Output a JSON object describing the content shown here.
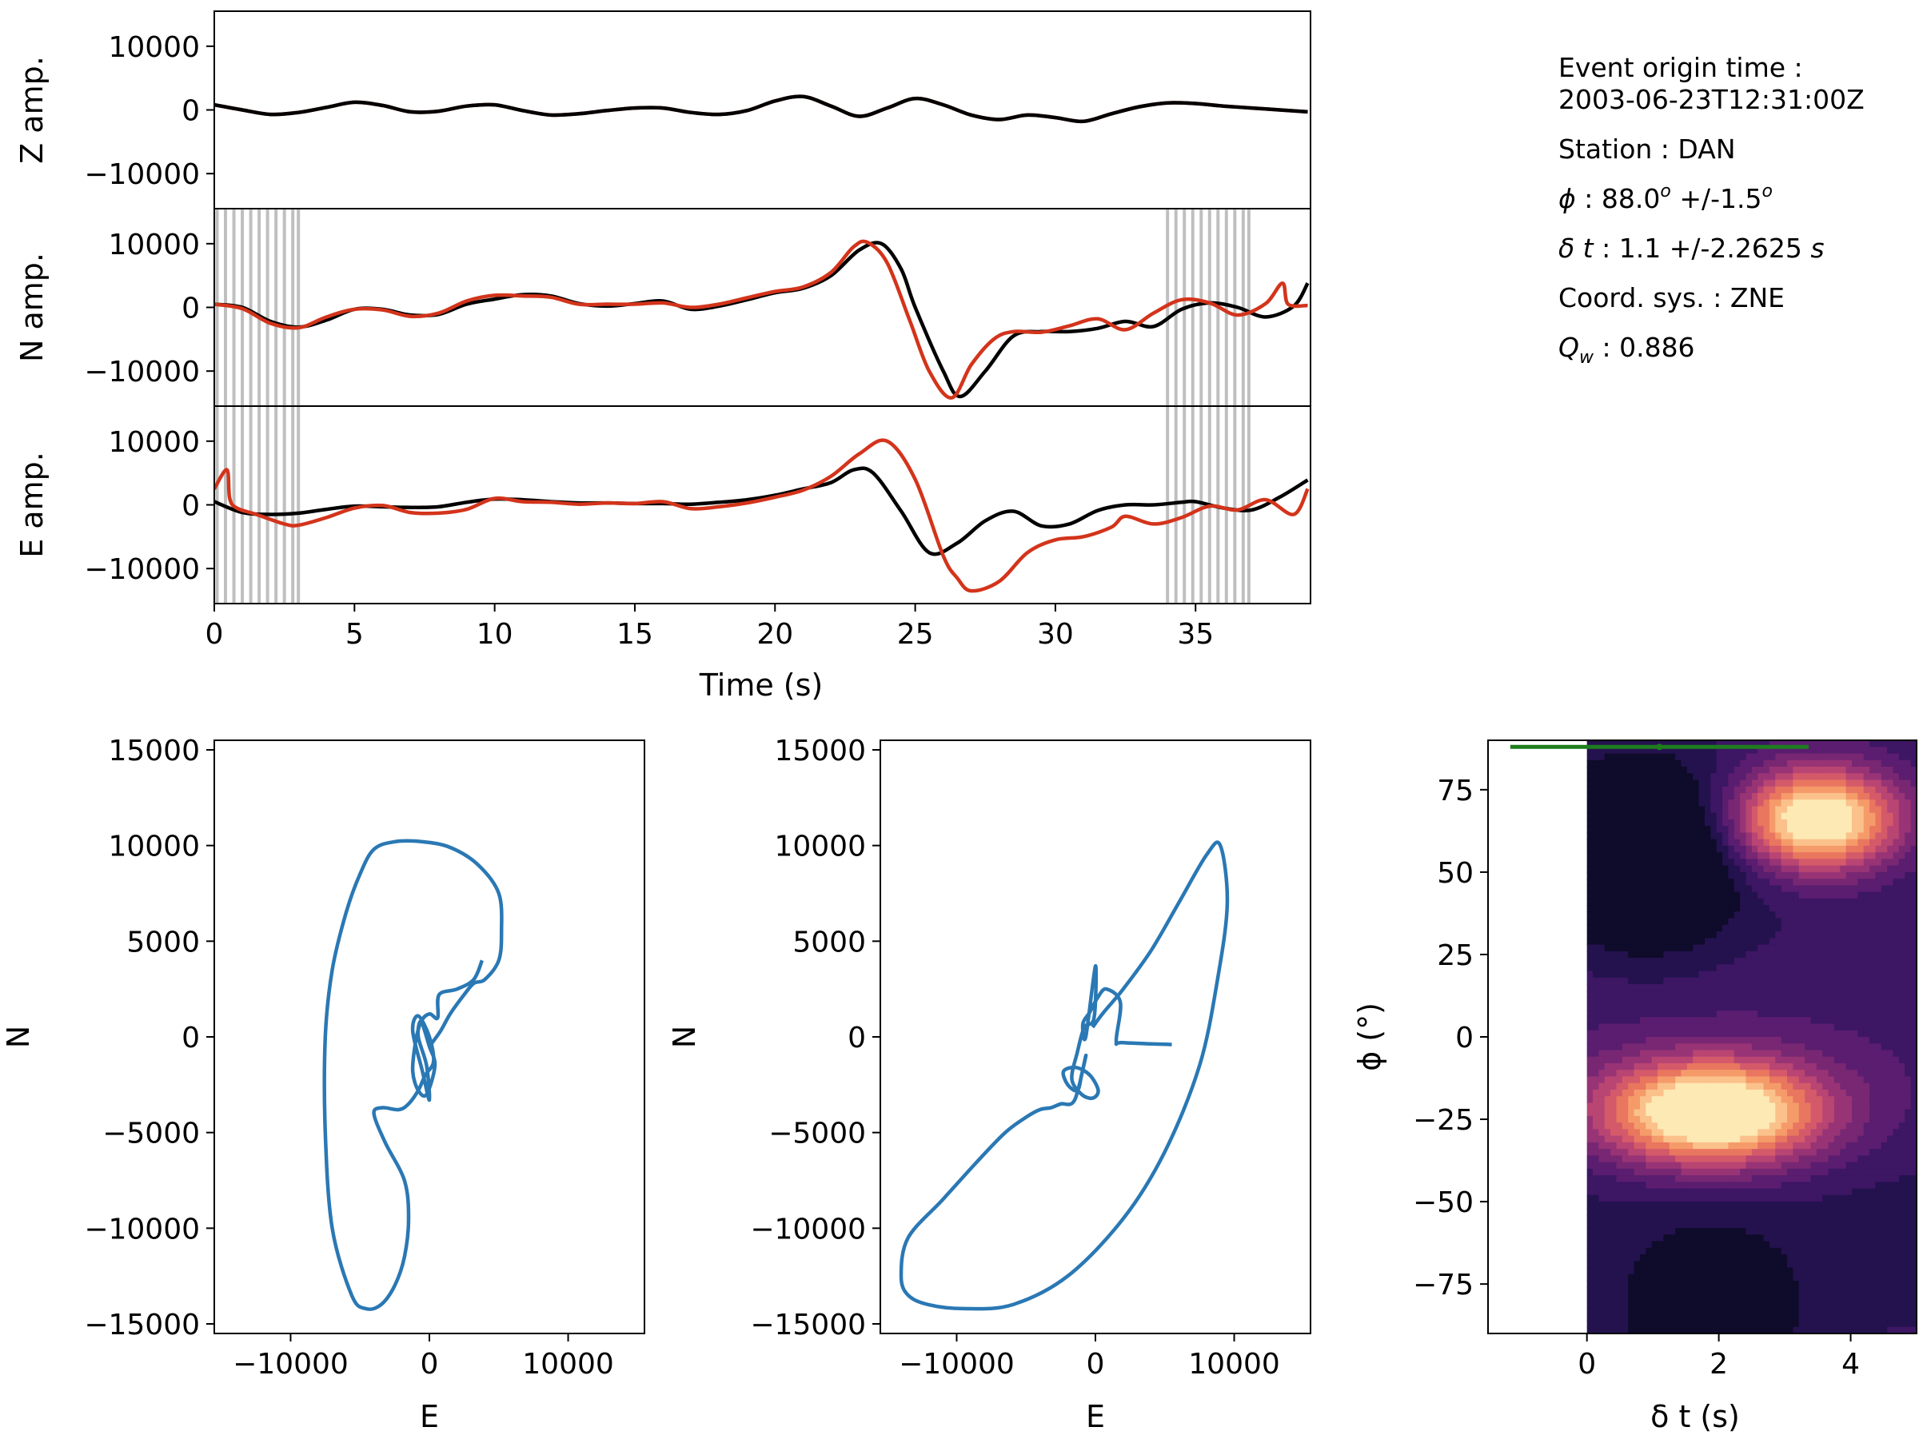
{
  "info": {
    "origin_label": "Event origin time :",
    "origin_value": "2003-06-23T12:31:00Z",
    "station": "Station : DAN",
    "phi_sym": "ϕ",
    "phi_text": " : 88.0",
    "phi_sup": "o",
    "phi_err": " +/-1.5",
    "phi_err_sup": "o",
    "dt_sym": "δ t",
    "dt_text": " : 1.1 +/-2.2625 ",
    "dt_unit": "s",
    "coord": "Coord. sys. : ZNE",
    "qw_sym": "Q",
    "qw_sub": "w",
    "qw_text": " : 0.886"
  },
  "colors": {
    "observed": "#000000",
    "corrected": "#d3341b",
    "particle": "#2a78b4",
    "window": "#bfbfbf",
    "best_fit": "#1e7d1e"
  },
  "chart_data": [
    {
      "type": "line",
      "title": "",
      "xlabel": "",
      "ylabel": "Z amp.",
      "xlim": [
        0,
        39.1
      ],
      "ylim": [
        -15500,
        15500
      ],
      "yticks": [
        10000,
        0,
        -10000
      ],
      "ytick_labels": [
        "10000",
        "0",
        "−10000"
      ],
      "series": [
        {
          "color": "#d3341b",
          "x": [
            0,
            1,
            2,
            3,
            4,
            5,
            6,
            7,
            8,
            9,
            10,
            11,
            12,
            13,
            14,
            15,
            16,
            17,
            18,
            19,
            20,
            21,
            22,
            23,
            24,
            25,
            26,
            27,
            28,
            29,
            30,
            31,
            32,
            33,
            34,
            35,
            36,
            37,
            38,
            39
          ],
          "y": [
            800,
            0,
            -700,
            -400,
            400,
            1200,
            700,
            -300,
            -200,
            600,
            800,
            -100,
            -800,
            -600,
            -100,
            300,
            300,
            -400,
            -700,
            -100,
            1400,
            2100,
            600,
            -1000,
            300,
            1800,
            800,
            -800,
            -1500,
            -800,
            -1200,
            -1800,
            -600,
            500,
            1100,
            1000,
            600,
            300,
            0,
            -300
          ]
        },
        {
          "color": "#000000",
          "x": [
            0,
            1,
            2,
            3,
            4,
            5,
            6,
            7,
            8,
            9,
            10,
            11,
            12,
            13,
            14,
            15,
            16,
            17,
            18,
            19,
            20,
            21,
            22,
            23,
            24,
            25,
            26,
            27,
            28,
            29,
            30,
            31,
            32,
            33,
            34,
            35,
            36,
            37,
            38,
            39
          ],
          "y": [
            800,
            0,
            -700,
            -400,
            400,
            1200,
            700,
            -300,
            -200,
            600,
            800,
            -100,
            -800,
            -600,
            -100,
            300,
            300,
            -400,
            -700,
            -100,
            1400,
            2100,
            600,
            -1000,
            300,
            1800,
            800,
            -800,
            -1500,
            -800,
            -1200,
            -1800,
            -600,
            500,
            1100,
            1000,
            600,
            300,
            0,
            -300
          ]
        }
      ]
    },
    {
      "type": "line",
      "title": "",
      "xlabel": "",
      "ylabel": "N amp.",
      "xlim": [
        0,
        39.1
      ],
      "ylim": [
        -15500,
        15500
      ],
      "yticks": [
        10000,
        0,
        -10000
      ],
      "ytick_labels": [
        "10000",
        "0",
        "−10000"
      ],
      "windows": [
        0.1,
        0.4,
        0.7,
        1.0,
        1.3,
        1.6,
        1.9,
        2.2,
        2.5,
        2.8,
        3.0,
        34.0,
        34.3,
        34.6,
        34.9,
        35.2,
        35.5,
        35.8,
        36.1,
        36.4,
        36.7,
        36.9
      ],
      "series": [
        {
          "color": "#000000",
          "x": [
            0,
            1,
            2,
            3,
            4,
            5,
            6,
            7,
            8,
            9,
            10,
            11,
            12,
            13,
            14,
            15,
            16,
            17,
            18,
            19,
            20,
            21,
            22,
            23,
            23.8,
            24.5,
            25,
            26,
            26.6,
            27.5,
            28.5,
            29.5,
            30.5,
            31.5,
            32.5,
            33.5,
            34.5,
            35.5,
            36.5,
            37.5,
            38.5,
            39
          ],
          "y": [
            500,
            0,
            -2200,
            -3100,
            -2000,
            -300,
            -300,
            -1200,
            -1100,
            500,
            1300,
            2000,
            1800,
            600,
            200,
            600,
            1000,
            -300,
            200,
            1200,
            2300,
            3000,
            5000,
            9000,
            10000,
            6000,
            0,
            -10000,
            -14000,
            -10000,
            -4500,
            -3800,
            -3800,
            -3300,
            -2200,
            -3000,
            -300,
            700,
            0,
            -1500,
            200,
            3800
          ]
        },
        {
          "color": "#d3341b",
          "x": [
            0,
            1,
            2,
            3,
            4,
            5,
            6,
            7,
            8,
            9,
            10,
            11,
            12,
            13,
            14,
            15,
            16,
            17,
            18,
            19,
            20,
            21,
            22,
            22.8,
            23.3,
            24,
            24.8,
            25.5,
            26.3,
            27,
            27.8,
            28.5,
            29.5,
            30.5,
            31.5,
            32.5,
            33.5,
            34.5,
            35.5,
            36.5,
            37.5,
            38.1,
            38.3,
            39
          ],
          "y": [
            500,
            -200,
            -2500,
            -3200,
            -1500,
            -300,
            -400,
            -1400,
            -900,
            1000,
            1900,
            1800,
            1600,
            500,
            500,
            500,
            700,
            0,
            500,
            1500,
            2500,
            3200,
            5500,
            9500,
            10200,
            7000,
            -2000,
            -10000,
            -14200,
            -9000,
            -5000,
            -3800,
            -3900,
            -2900,
            -1800,
            -3500,
            -900,
            1200,
            700,
            -1200,
            600,
            3800,
            500,
            300
          ]
        }
      ]
    },
    {
      "type": "line",
      "title": "",
      "xlabel": "Time (s)",
      "ylabel": "E amp.",
      "xlim": [
        0,
        39.1
      ],
      "ylim": [
        -15500,
        15500
      ],
      "yticks": [
        10000,
        0,
        -10000
      ],
      "ytick_labels": [
        "10000",
        "0",
        "−10000"
      ],
      "xticks": [
        0,
        5,
        10,
        15,
        20,
        25,
        30,
        35
      ],
      "windows": [
        0.1,
        0.4,
        0.7,
        1.0,
        1.3,
        1.6,
        1.9,
        2.2,
        2.5,
        2.8,
        3.0,
        34.0,
        34.3,
        34.6,
        34.9,
        35.2,
        35.5,
        35.8,
        36.1,
        36.4,
        36.7,
        36.9
      ],
      "series": [
        {
          "color": "#000000",
          "x": [
            0,
            1,
            2,
            3,
            4,
            5,
            6,
            7,
            8,
            9,
            10,
            11,
            12,
            13,
            14,
            15,
            16,
            17,
            18,
            19,
            20,
            21,
            22,
            22.8,
            23.5,
            24.5,
            25.5,
            26.5,
            27.5,
            28.5,
            29.5,
            30.5,
            31.5,
            32.5,
            33.5,
            34.5,
            35,
            36,
            37,
            38,
            39
          ],
          "y": [
            500,
            -1200,
            -1500,
            -1300,
            -700,
            -200,
            -300,
            -400,
            -300,
            400,
            900,
            800,
            500,
            300,
            300,
            200,
            200,
            100,
            400,
            800,
            1500,
            2500,
            3500,
            5500,
            5000,
            -1000,
            -7500,
            -6000,
            -2500,
            -1000,
            -3300,
            -3000,
            -900,
            0,
            0,
            400,
            500,
            -500,
            -800,
            1200,
            3900
          ]
        },
        {
          "color": "#d3341b",
          "x": [
            0,
            0.45,
            0.55,
            0.8,
            1.5,
            2.5,
            3,
            4,
            5,
            6,
            7,
            8,
            9,
            10,
            11,
            12,
            13,
            14,
            15,
            16,
            17,
            18,
            19,
            20,
            21,
            22,
            23,
            24,
            25,
            26,
            26.5,
            27,
            28,
            29,
            30,
            31,
            32,
            32.5,
            33.5,
            34.5,
            35.5,
            36.5,
            37.5,
            38.5,
            39
          ],
          "y": [
            2500,
            5500,
            1000,
            -500,
            -1500,
            -3000,
            -3200,
            -2000,
            -500,
            -100,
            -1200,
            -1300,
            -700,
            1000,
            500,
            400,
            100,
            300,
            200,
            500,
            -600,
            -300,
            300,
            1200,
            2300,
            4500,
            8000,
            10000,
            4000,
            -8000,
            -11500,
            -13500,
            -12000,
            -7500,
            -5500,
            -5000,
            -3500,
            -1800,
            -3000,
            -2000,
            -200,
            -800,
            800,
            -1500,
            2500
          ]
        }
      ]
    },
    {
      "type": "line",
      "title": "",
      "xlabel": "E",
      "ylabel": "N",
      "xlim": [
        -15500,
        15500
      ],
      "ylim": [
        -15500,
        15500
      ],
      "xticks": [
        -10000,
        0,
        10000
      ],
      "xtick_labels": [
        "−10000",
        "0",
        "10000"
      ],
      "yticks": [
        15000,
        10000,
        5000,
        0,
        -5000,
        -10000,
        -15000
      ],
      "ytick_labels": [
        "15000",
        "10000",
        "5000",
        "0",
        "−5000",
        "−10000",
        "−15000"
      ],
      "series": [
        {
          "color": "#2a78b4",
          "x": [
            3800,
            3200,
            2000,
            700,
            600,
            0,
            -600,
            -1000,
            -1200,
            -800,
            -200,
            400,
            0,
            -600,
            -800,
            -200,
            0,
            -500,
            -1200,
            -800,
            0,
            300,
            -300,
            -800,
            -1500,
            -2200,
            -3400,
            -4000,
            -3200,
            -1800,
            -1500,
            -1800,
            -2500,
            -3500,
            -4600,
            -5600,
            -7000,
            -7500,
            -7500,
            -7000,
            -6000,
            -5000,
            -4000,
            -2500,
            -500,
            1500,
            3500,
            5000,
            5200,
            5000,
            4000,
            3200,
            2500,
            1500,
            800,
            0
          ],
          "y": [
            4000,
            3000,
            2500,
            2200,
            1000,
            1200,
            800,
            -300,
            -1800,
            -2800,
            -3000,
            -1500,
            -500,
            800,
            0,
            -1500,
            -3300,
            -1800,
            300,
            1100,
            0,
            -1300,
            -2000,
            -2800,
            -3500,
            -3800,
            -3700,
            -4000,
            -5500,
            -7500,
            -9500,
            -11500,
            -13000,
            -14000,
            -14200,
            -13500,
            -10000,
            -5000,
            0,
            3500,
            6500,
            8500,
            9800,
            10200,
            10200,
            9900,
            9000,
            7500,
            5500,
            4000,
            3000,
            2800,
            2200,
            1200,
            300,
            -500
          ]
        }
      ]
    },
    {
      "type": "line",
      "title": "",
      "xlabel": "E",
      "ylabel": "N",
      "xlim": [
        -15500,
        15500
      ],
      "ylim": [
        -15500,
        15500
      ],
      "xticks": [
        -10000,
        0,
        10000
      ],
      "xtick_labels": [
        "−10000",
        "0",
        "10000"
      ],
      "yticks": [
        15000,
        10000,
        5000,
        0,
        -5000,
        -10000,
        -15000
      ],
      "ytick_labels": [
        "15000",
        "10000",
        "5000",
        "0",
        "−5000",
        "−10000",
        "−15000"
      ],
      "series": [
        {
          "color": "#2a78b4",
          "x": [
            5500,
            2000,
            1500,
            1800,
            800,
            200,
            -400,
            -900,
            -700,
            0,
            -100,
            -800,
            -1300,
            -1700,
            -1000,
            -200,
            200,
            -400,
            -1400,
            -2300,
            -2000,
            -1300,
            -1000,
            -700,
            -1500,
            -2500,
            -3200,
            -4000,
            -5000,
            -6500,
            -8500,
            -11000,
            -13500,
            -14000,
            -13500,
            -12000,
            -9500,
            -6000,
            -2000,
            2000,
            5000,
            7500,
            8800,
            9500,
            9000,
            8000,
            6000,
            4000,
            2000,
            500,
            -200
          ],
          "y": [
            -400,
            -300,
            -200,
            1800,
            2500,
            2100,
            1300,
            700,
            0,
            3700,
            1000,
            500,
            -800,
            -2200,
            -3000,
            -3200,
            -2800,
            -2000,
            -1600,
            -1800,
            -2500,
            -2800,
            -2000,
            -1000,
            -3300,
            -3500,
            -3700,
            -3800,
            -4200,
            -5000,
            -6500,
            -8500,
            -10500,
            -12500,
            -13500,
            -14000,
            -14200,
            -14000,
            -12500,
            -9500,
            -6000,
            -1500,
            3000,
            7000,
            10000,
            9500,
            7000,
            4500,
            2500,
            1200,
            500
          ]
        }
      ]
    },
    {
      "type": "heatmap",
      "title": "",
      "xlabel": "δ t (s)",
      "ylabel": "ϕ (°)",
      "xlim": [
        -1.5,
        5.0
      ],
      "ylim": [
        -90,
        90
      ],
      "xticks": [
        0,
        2,
        4
      ],
      "yticks": [
        75,
        50,
        25,
        0,
        -25,
        -50,
        -75
      ],
      "ytick_labels": [
        "75",
        "50",
        "25",
        "0",
        "−25",
        "−50",
        "−75"
      ],
      "peaks": [
        {
          "dt": 3.5,
          "phi": 66
        },
        {
          "dt": 1.9,
          "phi": -23
        }
      ],
      "best_fit": {
        "dt": 1.1,
        "dt_err": 2.2625,
        "phi": 88.0
      },
      "palette": [
        "#0f0b2b",
        "#24124e",
        "#3d1664",
        "#5a1d6f",
        "#782773",
        "#983475",
        "#b84572",
        "#d45a6a",
        "#e9765f",
        "#f59b6a",
        "#fbc18b",
        "#fde9b4"
      ]
    }
  ]
}
